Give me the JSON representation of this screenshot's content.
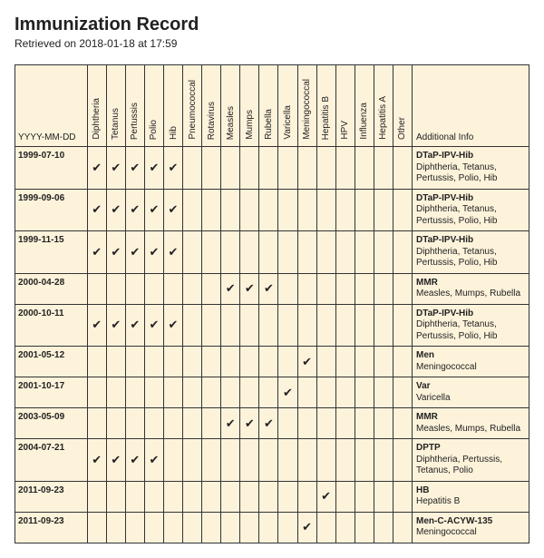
{
  "title": "Immunization Record",
  "subtitle": "Retrieved on 2018-01-18 at 17:59",
  "checkmark": "✔",
  "dateHeader": "YYYY-MM-DD",
  "infoHeader": "Additional Info",
  "vaccines": [
    "Diphtheria",
    "Tetanus",
    "Pertussis",
    "Polio",
    "Hib",
    "Pneumococcal",
    "Rotavirus",
    "Measles",
    "Mumps",
    "Rubella",
    "Varicella",
    "Meningococcal",
    "Hepatitis B",
    "HPV",
    "Influenza",
    "Hepatitis A",
    "Other"
  ],
  "rows": [
    {
      "date": "1999-07-10",
      "checks": [
        1,
        1,
        1,
        1,
        1,
        0,
        0,
        0,
        0,
        0,
        0,
        0,
        0,
        0,
        0,
        0,
        0
      ],
      "name": "DTaP-IPV-Hib",
      "desc": "Diphtheria, Tetanus, Pertussis, Polio, Hib"
    },
    {
      "date": "1999-09-06",
      "checks": [
        1,
        1,
        1,
        1,
        1,
        0,
        0,
        0,
        0,
        0,
        0,
        0,
        0,
        0,
        0,
        0,
        0
      ],
      "name": "DTaP-IPV-Hib",
      "desc": "Diphtheria, Tetanus, Pertussis, Polio, Hib"
    },
    {
      "date": "1999-11-15",
      "checks": [
        1,
        1,
        1,
        1,
        1,
        0,
        0,
        0,
        0,
        0,
        0,
        0,
        0,
        0,
        0,
        0,
        0
      ],
      "name": "DTaP-IPV-Hib",
      "desc": "Diphtheria, Tetanus, Pertussis, Polio, Hib"
    },
    {
      "date": "2000-04-28",
      "checks": [
        0,
        0,
        0,
        0,
        0,
        0,
        0,
        1,
        1,
        1,
        0,
        0,
        0,
        0,
        0,
        0,
        0
      ],
      "name": "MMR",
      "desc": "Measles, Mumps, Rubella"
    },
    {
      "date": "2000-10-11",
      "checks": [
        1,
        1,
        1,
        1,
        1,
        0,
        0,
        0,
        0,
        0,
        0,
        0,
        0,
        0,
        0,
        0,
        0
      ],
      "name": "DTaP-IPV-Hib",
      "desc": "Diphtheria, Tetanus, Pertussis, Polio, Hib"
    },
    {
      "date": "2001-05-12",
      "checks": [
        0,
        0,
        0,
        0,
        0,
        0,
        0,
        0,
        0,
        0,
        0,
        1,
        0,
        0,
        0,
        0,
        0
      ],
      "name": "Men",
      "desc": "Meningococcal"
    },
    {
      "date": "2001-10-17",
      "checks": [
        0,
        0,
        0,
        0,
        0,
        0,
        0,
        0,
        0,
        0,
        1,
        0,
        0,
        0,
        0,
        0,
        0
      ],
      "name": "Var",
      "desc": "Varicella"
    },
    {
      "date": "2003-05-09",
      "checks": [
        0,
        0,
        0,
        0,
        0,
        0,
        0,
        1,
        1,
        1,
        0,
        0,
        0,
        0,
        0,
        0,
        0
      ],
      "name": "MMR",
      "desc": "Measles, Mumps, Rubella"
    },
    {
      "date": "2004-07-21",
      "checks": [
        1,
        1,
        1,
        1,
        0,
        0,
        0,
        0,
        0,
        0,
        0,
        0,
        0,
        0,
        0,
        0,
        0
      ],
      "name": "DPTP",
      "desc": "Diphtheria, Pertussis, Tetanus, Polio"
    },
    {
      "date": "2011-09-23",
      "checks": [
        0,
        0,
        0,
        0,
        0,
        0,
        0,
        0,
        0,
        0,
        0,
        0,
        1,
        0,
        0,
        0,
        0
      ],
      "name": "HB",
      "desc": "Hepatitis B"
    },
    {
      "date": "2011-09-23",
      "checks": [
        0,
        0,
        0,
        0,
        0,
        0,
        0,
        0,
        0,
        0,
        0,
        1,
        0,
        0,
        0,
        0,
        0
      ],
      "name": "Men-C-ACYW-135",
      "desc": "Meningococcal"
    }
  ]
}
